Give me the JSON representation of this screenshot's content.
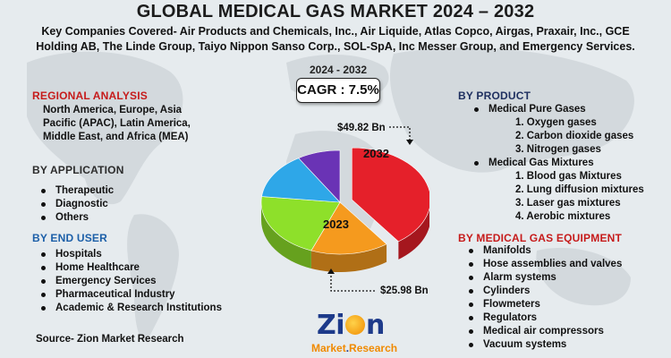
{
  "header": {
    "title": "GLOBAL MEDICAL GAS MARKET 2024 – 2032",
    "companies_line1": "Key Companies Covered- Air Products and Chemicals, Inc., Air Liquide, Atlas Copco, Airgas, Praxair, Inc., GCE",
    "companies_line2": "Holding AB, The Linde Group, Taiyo Nippon Sanso Corp., SOL-SpA, Inc Messer Group, and Emergency Services.",
    "period": "2024 - 2032",
    "cagr": "CAGR : 7.5%"
  },
  "regional": {
    "title": "REGIONAL ANALYSIS",
    "text_line1": "North America, Europe, Asia",
    "text_line2": "Pacific (APAC), Latin America,",
    "text_line3": "Middle East, and Africa (MEA)"
  },
  "application": {
    "title": "BY APPLICATION",
    "items": [
      "Therapeutic",
      "Diagnostic",
      "Others"
    ]
  },
  "end_user": {
    "title": "BY END USER",
    "items": [
      "Hospitals",
      "Home Healthcare",
      "Emergency Services",
      "Pharmaceutical Industry",
      "Academic & Research Institutions"
    ]
  },
  "product": {
    "title": "BY PRODUCT",
    "pure": "Medical Pure Gases",
    "pure_items": [
      "1. Oxygen gases",
      "2. Carbon dioxide gases",
      "3. Nitrogen gases"
    ],
    "mixtures": "Medical Gas Mixtures",
    "mixture_items": [
      "1. Blood gas Mixtures",
      "2. Lung diffusion mixtures",
      "3. Laser gas mixtures",
      "4. Aerobic mixtures"
    ]
  },
  "equipment": {
    "title": "BY MEDICAL GAS EQUIPMENT",
    "items": [
      "Manifolds",
      "Hose assemblies and valves",
      "Alarm systems",
      "Cylinders",
      "Flowmeters",
      "Regulators",
      "Medical air compressors",
      "Vacuum systems"
    ]
  },
  "source": "Source- Zion Market Research",
  "logo": {
    "name": "Zion",
    "sub_a": "Market",
    "sub_b": "Research"
  },
  "colors": {
    "slice_red": "#e5202a",
    "slice_orange": "#f59a1e",
    "slice_green": "#8ee02a",
    "slice_blue": "#2ea7e8",
    "slice_purple": "#6a33b5",
    "section_red": "#c61b1b",
    "section_navy": "#1f3060",
    "section_blue": "#1c5fa8"
  },
  "chart_data": {
    "type": "pie",
    "title": "",
    "slices": [
      {
        "label": "2032",
        "value": 49.82,
        "display": "$49.82 Bn",
        "color": "#e5202a"
      },
      {
        "label": "",
        "value": 20,
        "color": "#f59a1e"
      },
      {
        "label": "2023",
        "value": 25.98,
        "display": "$25.98 Bn",
        "color": "#8ee02a"
      },
      {
        "label": "",
        "value": 18,
        "color": "#2ea7e8"
      },
      {
        "label": "",
        "value": 11,
        "color": "#6a33b5"
      }
    ],
    "exploded_slice": "2032",
    "legend": "none"
  }
}
